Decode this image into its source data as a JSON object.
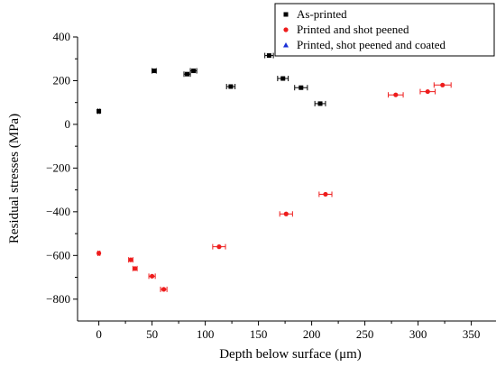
{
  "chart_data": {
    "type": "scatter",
    "xlabel": "Depth below surface (μm)",
    "ylabel": "Residual stresses (MPa)",
    "xlim": [
      -20,
      380
    ],
    "ylim": [
      -900,
      400
    ],
    "x_ticks": [
      0,
      50,
      100,
      150,
      200,
      250,
      300,
      350
    ],
    "y_ticks": [
      -800,
      -600,
      -400,
      -200,
      0,
      200,
      400
    ],
    "y_tick_labels": [
      "−800",
      "−600",
      "−400",
      "−200",
      "0",
      "200",
      "400"
    ],
    "legend_position": "top-right",
    "series": [
      {
        "name": "As-printed",
        "marker": "square",
        "color": "#000000",
        "points": [
          {
            "x": 0,
            "y": 60,
            "xerr": 1
          },
          {
            "x": 52,
            "y": 245,
            "xerr": 2
          },
          {
            "x": 83,
            "y": 230,
            "xerr": 3
          },
          {
            "x": 89,
            "y": 245,
            "xerr": 3
          },
          {
            "x": 124,
            "y": 173,
            "xerr": 4
          },
          {
            "x": 160,
            "y": 315,
            "xerr": 4
          },
          {
            "x": 173,
            "y": 210,
            "xerr": 5
          },
          {
            "x": 190,
            "y": 168,
            "xerr": 6
          },
          {
            "x": 208,
            "y": 95,
            "xerr": 5
          }
        ]
      },
      {
        "name": "Printed and shot peened",
        "marker": "circle",
        "color": "#ee1c1c",
        "points": [
          {
            "x": 0,
            "y": -590,
            "xerr": 1
          },
          {
            "x": 30,
            "y": -620,
            "xerr": 2
          },
          {
            "x": 34,
            "y": -660,
            "xerr": 2
          },
          {
            "x": 50,
            "y": -695,
            "xerr": 3
          },
          {
            "x": 61,
            "y": -755,
            "xerr": 3
          },
          {
            "x": 113,
            "y": -560,
            "xerr": 6
          },
          {
            "x": 176,
            "y": -410,
            "xerr": 6
          },
          {
            "x": 213,
            "y": -320,
            "xerr": 6
          },
          {
            "x": 279,
            "y": 135,
            "xerr": 7
          },
          {
            "x": 309,
            "y": 150,
            "xerr": 7
          },
          {
            "x": 323,
            "y": 180,
            "xerr": 8
          }
        ]
      },
      {
        "name": "Printed, shot peened and coated",
        "marker": "triangle",
        "color": "#1a2fd6",
        "points": []
      }
    ]
  }
}
